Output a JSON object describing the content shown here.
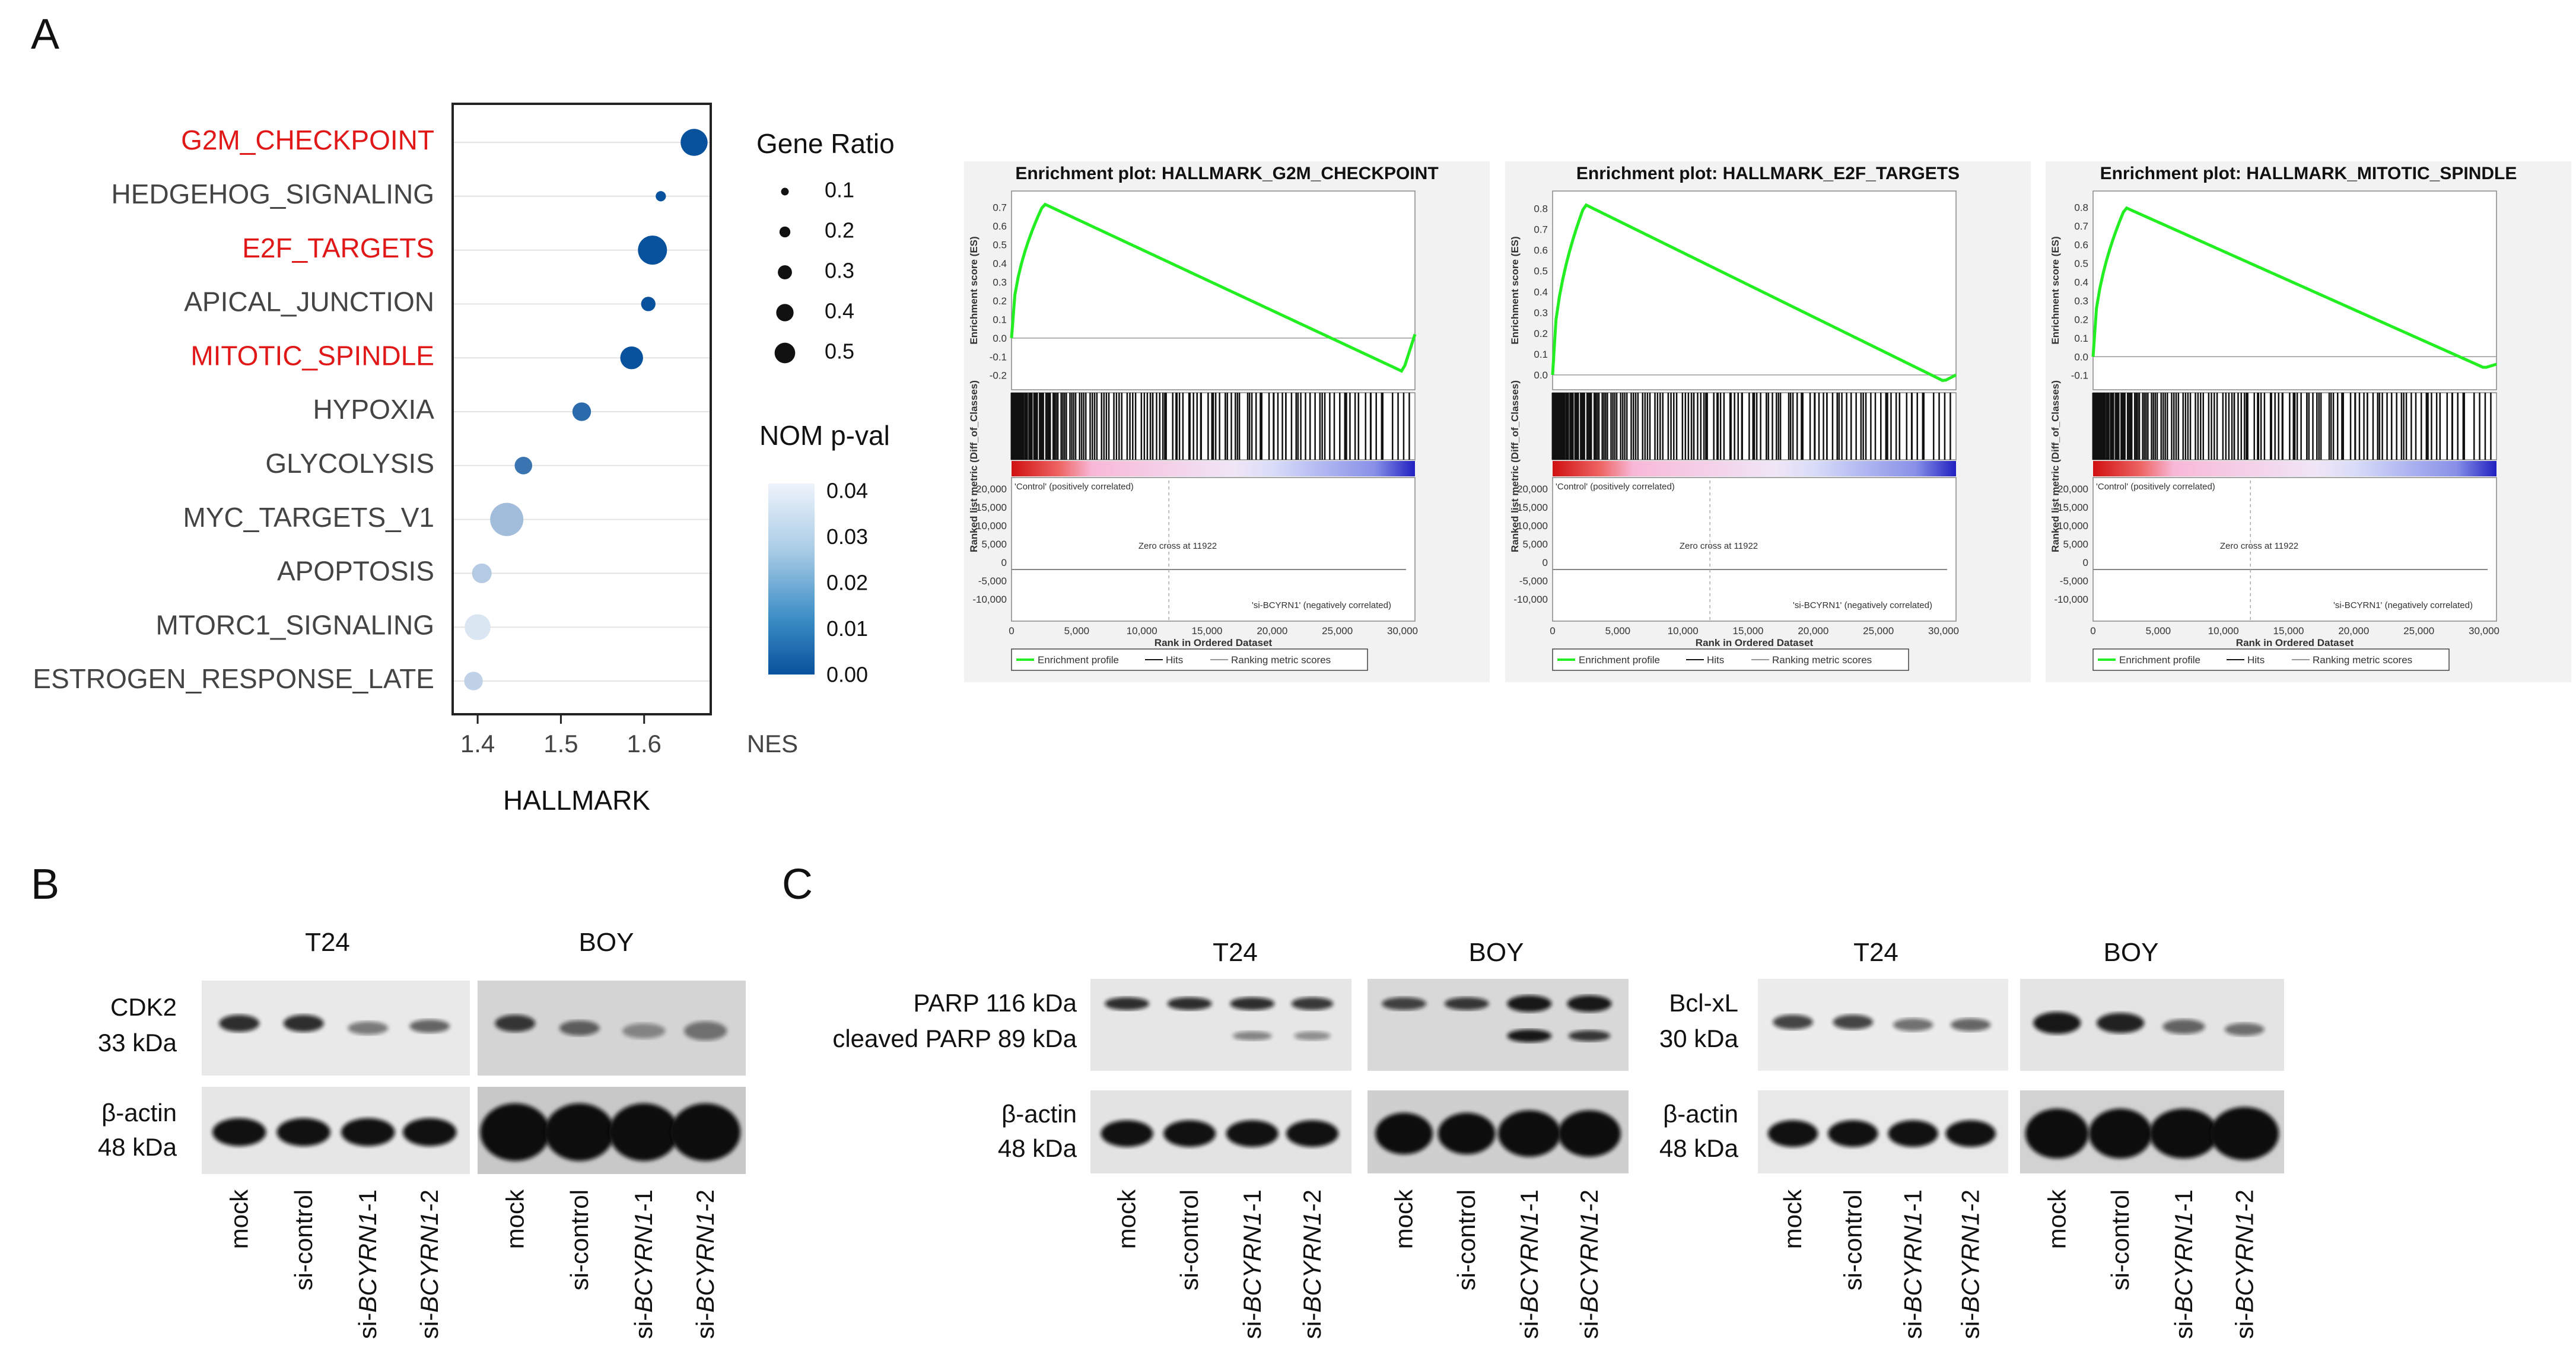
{
  "panels": {
    "a": "A",
    "b": "B",
    "c": "C"
  },
  "dotplot": {
    "xlabel": "HALLMARK",
    "x_unit": "NES",
    "chart_data": {
      "type": "scatter",
      "title": "",
      "xlabel": "NES",
      "ylabel": "HALLMARK",
      "xlim": [
        1.37,
        1.68
      ],
      "xticks": [
        1.4,
        1.5,
        1.6
      ],
      "categories": [
        "G2M_CHECKPOINT",
        "HEDGEHOG_SIGNALING",
        "E2F_TARGETS",
        "APICAL_JUNCTION",
        "MITOTIC_SPINDLE",
        "HYPOXIA",
        "GLYCOLYSIS",
        "MYC_TARGETS_V1",
        "APOPTOSIS",
        "MTORC1_SIGNALING",
        "ESTROGEN_RESPONSE_LATE"
      ],
      "highlighted": [
        "G2M_CHECKPOINT",
        "E2F_TARGETS",
        "MITOTIC_SPINDLE"
      ],
      "nes": [
        1.66,
        1.62,
        1.61,
        1.605,
        1.585,
        1.525,
        1.455,
        1.435,
        1.405,
        1.4,
        1.395
      ],
      "gene_ratio": [
        0.38,
        0.06,
        0.42,
        0.14,
        0.3,
        0.22,
        0.2,
        0.5,
        0.24,
        0.36,
        0.22
      ],
      "nom_pval": [
        0.0,
        0.0,
        0.0,
        0.0,
        0.0,
        0.004,
        0.006,
        0.024,
        0.028,
        0.036,
        0.03
      ],
      "size_legend": {
        "title": "Gene Ratio",
        "values": [
          "0.1",
          "0.2",
          "0.3",
          "0.4",
          "0.5"
        ]
      },
      "color_legend": {
        "title": "NOM p-val",
        "ticks": [
          "0.04",
          "0.03",
          "0.02",
          "0.01",
          "0.00"
        ],
        "low_color": "#08519c",
        "high_color": "#eef3fb"
      }
    }
  },
  "gsea": {
    "ylabel_es": "Enrichment score (ES)",
    "ylabel_rank": "Ranked list metric (Diff_of_Classes)",
    "xlabel": "Rank in Ordered Dataset",
    "pos_label": "'Control' (positively correlated)",
    "neg_label": "'si-BCYRN1' (negatively correlated)",
    "zero_cross": "Zero cross at 11922",
    "rank_ticks": [
      "20,000",
      "15,000",
      "10,000",
      "5,000",
      "0",
      "-5,000",
      "-10,000"
    ],
    "x_ticks": [
      "0",
      "5,000",
      "10,000",
      "15,000",
      "20,000",
      "25,000",
      "30,000"
    ],
    "legend": [
      "Enrichment profile",
      "Hits",
      "Ranking metric scores"
    ],
    "colors": {
      "profile": "#22ee22",
      "pos": "#e02020",
      "neg": "#2020d0"
    },
    "plots": [
      {
        "title": "Enrichment plot: HALLMARK_G2M_CHECKPOINT",
        "es_ticks": [
          "0.7",
          "0.6",
          "0.5",
          "0.4",
          "0.3",
          "0.2",
          "0.1",
          "0.0",
          "-0.1",
          "-0.2"
        ]
      },
      {
        "title": "Enrichment plot: HALLMARK_E2F_TARGETS",
        "es_ticks": [
          "0.8",
          "0.7",
          "0.6",
          "0.5",
          "0.4",
          "0.3",
          "0.2",
          "0.1",
          "0.0"
        ]
      },
      {
        "title": "Enrichment plot: HALLMARK_MITOTIC_SPINDLE",
        "es_ticks": [
          "0.8",
          "0.7",
          "0.6",
          "0.5",
          "0.4",
          "0.3",
          "0.2",
          "0.1",
          "0.0",
          "-0.1"
        ]
      }
    ]
  },
  "blots": {
    "lanes": [
      "mock",
      "si-control",
      "si-BCYRN1-1",
      "si-BCYRN1-2"
    ],
    "lane_prefix": "si-",
    "lane_gene": "BCYRN1",
    "cell_lines": [
      "T24",
      "BOY"
    ],
    "b": {
      "protein": "CDK2",
      "protein_kda": "33 kDa",
      "loading": "β-actin",
      "loading_kda": "48 kDa"
    },
    "c1": {
      "protein": "PARP 116 kDa",
      "protein2": "cleaved  PARP 89 kDa",
      "loading": "β-actin",
      "loading_kda": "48 kDa"
    },
    "c2": {
      "protein": "Bcl-xL",
      "protein_kda": "30 kDa",
      "loading": "β-actin",
      "loading_kda": "48 kDa"
    }
  }
}
